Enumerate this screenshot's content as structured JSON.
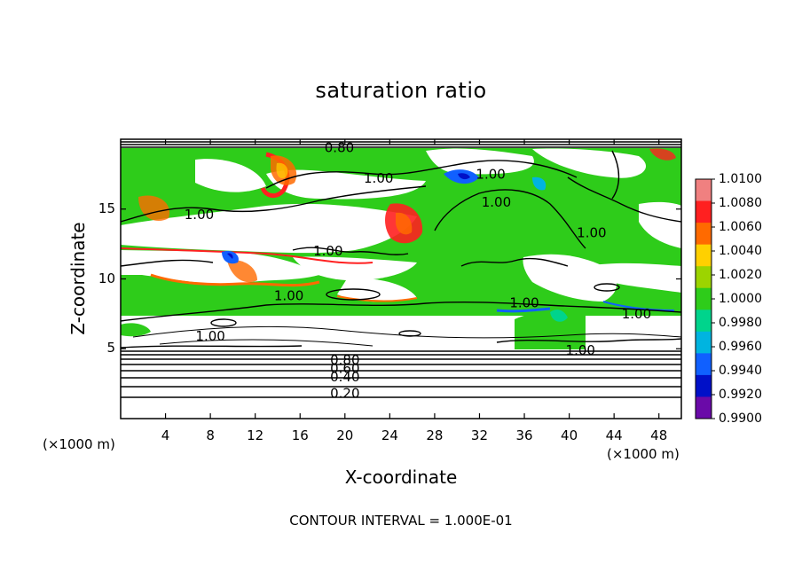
{
  "chart_data": {
    "type": "heatmap",
    "title": "saturation ratio",
    "xlabel": "X-coordinate",
    "ylabel": "Z-coordinate",
    "x_unit": "(×1000 m)",
    "y_unit": "(×1000 m)",
    "xlim": [
      0,
      50
    ],
    "ylim": [
      0,
      20
    ],
    "x_ticks": [
      "4",
      "8",
      "12",
      "16",
      "20",
      "24",
      "28",
      "32",
      "36",
      "40",
      "44",
      "48"
    ],
    "y_ticks": [
      "5",
      "10",
      "15"
    ],
    "colorbar": {
      "labels": [
        "1.0100",
        "1.0080",
        "1.0060",
        "1.0040",
        "1.0020",
        "1.0000",
        "0.9980",
        "0.9960",
        "0.9940",
        "0.9920",
        "0.9900"
      ],
      "colors": [
        "#f08080",
        "#ff2020",
        "#ff6a00",
        "#ffd000",
        "#9cd400",
        "#2ecc1a",
        "#00d48c",
        "#00b4e0",
        "#1060ff",
        "#0010c8",
        "#6a0aa8"
      ]
    },
    "contour_labels": [
      {
        "text": "0.20",
        "x": 20,
        "y": 1.8
      },
      {
        "text": "0.40",
        "x": 20,
        "y": 3.0
      },
      {
        "text": "0.60",
        "x": 20,
        "y": 3.6
      },
      {
        "text": "0.80",
        "x": 20,
        "y": 4.2
      },
      {
        "text": "0.80",
        "x": 19.5,
        "y": 19.4
      },
      {
        "text": "1.00",
        "x": 23,
        "y": 17.2
      },
      {
        "text": "1.00",
        "x": 33,
        "y": 17.5
      },
      {
        "text": "1.00",
        "x": 33.5,
        "y": 15.5
      },
      {
        "text": "1.00",
        "x": 7,
        "y": 14.6
      },
      {
        "text": "1.00",
        "x": 18.5,
        "y": 12.0
      },
      {
        "text": "1.00",
        "x": 42,
        "y": 13.3
      },
      {
        "text": "1.00",
        "x": 15,
        "y": 8.8
      },
      {
        "text": "1.00",
        "x": 36,
        "y": 8.3
      },
      {
        "text": "1.00",
        "x": 46,
        "y": 7.5
      },
      {
        "text": "1.00",
        "x": 8,
        "y": 5.9
      },
      {
        "text": "1.00",
        "x": 41,
        "y": 4.9
      }
    ]
  },
  "footnote": "CONTOUR INTERVAL = 1.000E-01"
}
